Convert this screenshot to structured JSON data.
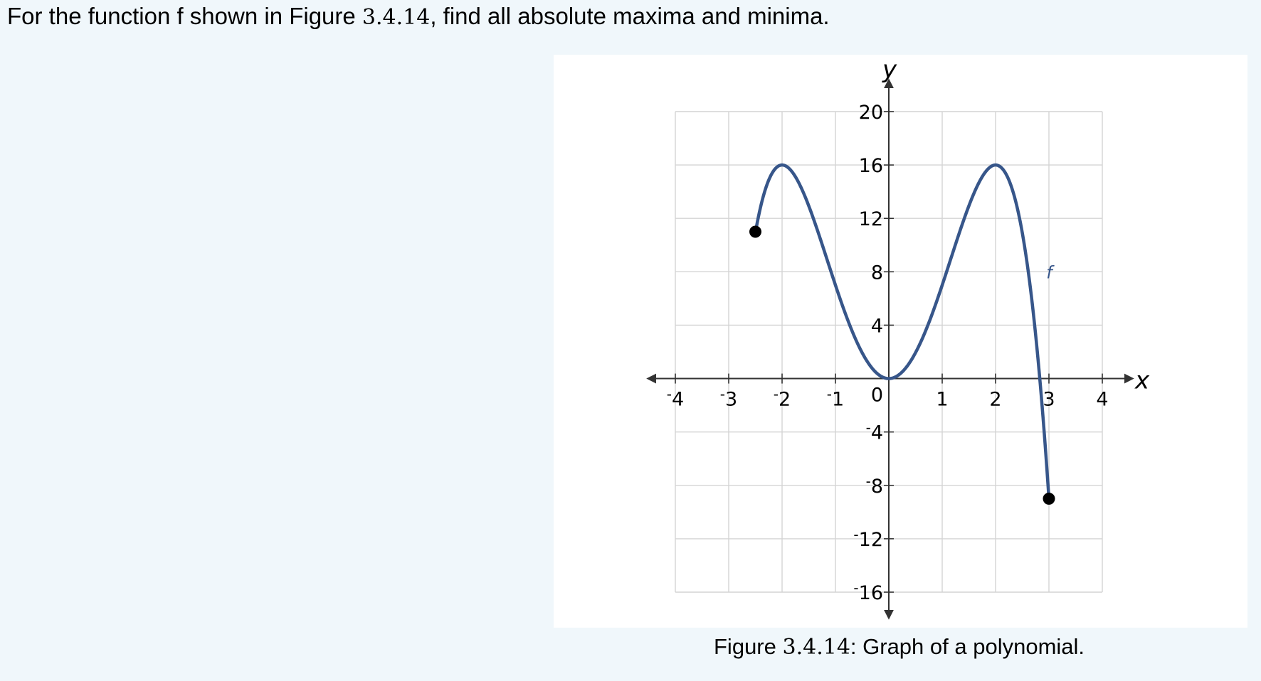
{
  "question": {
    "prefix": "For the function f shown in Figure ",
    "figure_number": "3.4.14",
    "suffix": ", find all absolute maxima and minima."
  },
  "caption": {
    "prefix": "Figure ",
    "figure_number": "3.4.14",
    "suffix": ": Graph of a polynomial."
  },
  "colors": {
    "page_background": "#f0f7fb",
    "figure_background": "#ffffff",
    "curve": "#37568a",
    "grid": "#d4d4d4",
    "axes": "#333333",
    "endpoint": "#000000"
  },
  "chart_data": {
    "type": "line",
    "xlabel": "x",
    "ylabel": "y",
    "xlim": [
      -4,
      4
    ],
    "ylim": [
      -16,
      20
    ],
    "x_ticks": [
      -4,
      -3,
      -2,
      -1,
      1,
      2,
      3,
      4
    ],
    "x_tick_labels": [
      "-4",
      "-3",
      "-2",
      "-1",
      "1",
      "2",
      "3",
      "4"
    ],
    "y_ticks": [
      -16,
      -12,
      -8,
      -4,
      4,
      8,
      12,
      16,
      20
    ],
    "y_tick_labels": [
      "-16",
      "-12",
      "-8",
      "-4",
      "4",
      "8",
      "12",
      "16",
      "20"
    ],
    "origin_label": "0",
    "grid": true,
    "series": [
      {
        "name": "f",
        "function": "-x^4 + 8x^2",
        "domain": [
          -2.5,
          3
        ],
        "points": [
          {
            "x": -2.5,
            "y": 11
          },
          {
            "x": -2,
            "y": 16
          },
          {
            "x": -1,
            "y": 7
          },
          {
            "x": 0,
            "y": 0
          },
          {
            "x": 1,
            "y": 7
          },
          {
            "x": 2,
            "y": 16
          },
          {
            "x": 2.5,
            "y": 11
          },
          {
            "x": 3,
            "y": -9
          }
        ],
        "endpoints": [
          {
            "x": -2.5,
            "y": 11,
            "closed": true
          },
          {
            "x": 3,
            "y": -9,
            "closed": true
          }
        ]
      }
    ]
  }
}
